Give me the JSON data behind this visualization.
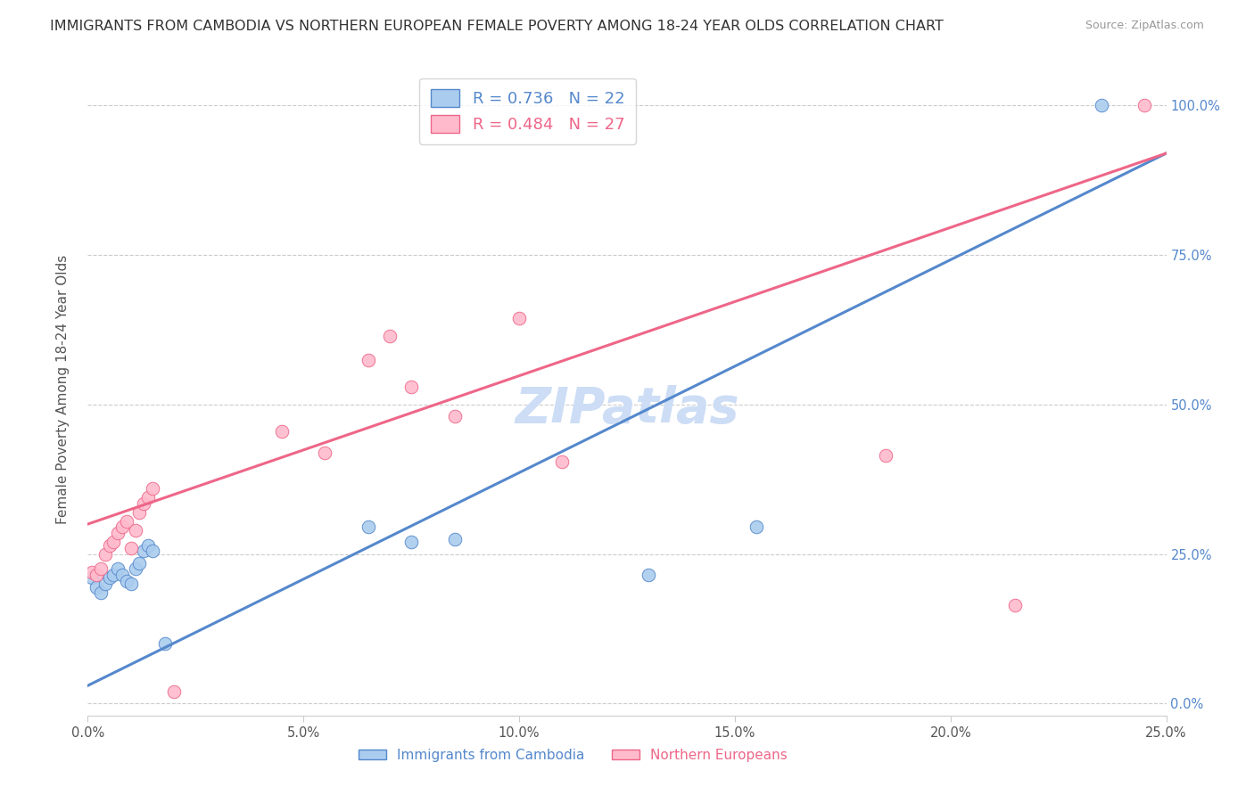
{
  "title": "IMMIGRANTS FROM CAMBODIA VS NORTHERN EUROPEAN FEMALE POVERTY AMONG 18-24 YEAR OLDS CORRELATION CHART",
  "source": "Source: ZipAtlas.com",
  "ylabel": "Female Poverty Among 18-24 Year Olds",
  "watermark": "ZIPatlas",
  "xlim": [
    0.0,
    0.25
  ],
  "ylim": [
    -0.02,
    1.07
  ],
  "ytick_labels": [
    "0.0%",
    "25.0%",
    "50.0%",
    "75.0%",
    "100.0%"
  ],
  "ytick_values": [
    0.0,
    0.25,
    0.5,
    0.75,
    1.0
  ],
  "xtick_labels": [
    "0.0%",
    "5.0%",
    "10.0%",
    "15.0%",
    "20.0%",
    "25.0%"
  ],
  "xtick_values": [
    0.0,
    0.05,
    0.1,
    0.15,
    0.2,
    0.25
  ],
  "blue_scatter": [
    [
      0.001,
      0.21
    ],
    [
      0.002,
      0.195
    ],
    [
      0.003,
      0.185
    ],
    [
      0.004,
      0.2
    ],
    [
      0.005,
      0.21
    ],
    [
      0.006,
      0.215
    ],
    [
      0.007,
      0.225
    ],
    [
      0.008,
      0.215
    ],
    [
      0.009,
      0.205
    ],
    [
      0.01,
      0.2
    ],
    [
      0.011,
      0.225
    ],
    [
      0.012,
      0.235
    ],
    [
      0.013,
      0.255
    ],
    [
      0.014,
      0.265
    ],
    [
      0.015,
      0.255
    ],
    [
      0.018,
      0.1
    ],
    [
      0.065,
      0.295
    ],
    [
      0.075,
      0.27
    ],
    [
      0.085,
      0.275
    ],
    [
      0.13,
      0.215
    ],
    [
      0.155,
      0.295
    ],
    [
      0.235,
      1.0
    ]
  ],
  "pink_scatter": [
    [
      0.001,
      0.22
    ],
    [
      0.002,
      0.215
    ],
    [
      0.003,
      0.225
    ],
    [
      0.004,
      0.25
    ],
    [
      0.005,
      0.265
    ],
    [
      0.006,
      0.27
    ],
    [
      0.007,
      0.285
    ],
    [
      0.008,
      0.295
    ],
    [
      0.009,
      0.305
    ],
    [
      0.01,
      0.26
    ],
    [
      0.011,
      0.29
    ],
    [
      0.012,
      0.32
    ],
    [
      0.013,
      0.335
    ],
    [
      0.014,
      0.345
    ],
    [
      0.015,
      0.36
    ],
    [
      0.02,
      0.02
    ],
    [
      0.045,
      0.455
    ],
    [
      0.055,
      0.42
    ],
    [
      0.065,
      0.575
    ],
    [
      0.07,
      0.615
    ],
    [
      0.075,
      0.53
    ],
    [
      0.085,
      0.48
    ],
    [
      0.1,
      0.645
    ],
    [
      0.11,
      0.405
    ],
    [
      0.185,
      0.415
    ],
    [
      0.215,
      0.165
    ],
    [
      0.245,
      1.0
    ]
  ],
  "blue_line_x": [
    0.0,
    0.25
  ],
  "blue_line_y": [
    0.03,
    0.92
  ],
  "pink_line_x": [
    0.0,
    0.25
  ],
  "pink_line_y": [
    0.3,
    0.92
  ],
  "blue_color": "#5588CC",
  "pink_color": "#EE6688",
  "blue_scatter_color": "#AACCEE",
  "pink_scatter_color": "#FFBBCC",
  "background_color": "#FFFFFF",
  "grid_color": "#CCCCCC",
  "title_fontsize": 11.5,
  "axis_label_fontsize": 11,
  "tick_fontsize": 10.5,
  "legend_fontsize": 13,
  "watermark_fontsize": 40,
  "watermark_color": "#DDEEFF",
  "marker_size": 110
}
